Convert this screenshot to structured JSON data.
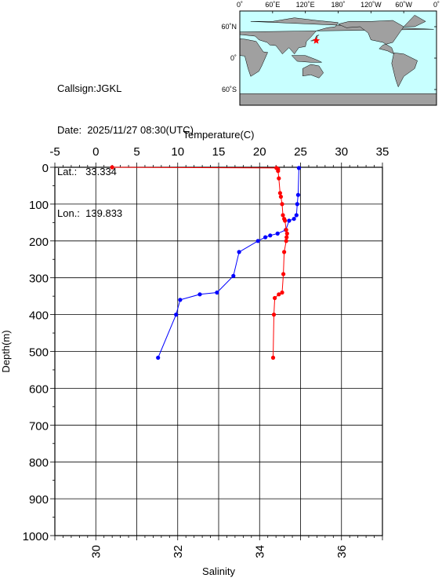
{
  "station": {
    "callsign_label": "Callsign:",
    "callsign": "JGKL",
    "date_label": "Date:",
    "date": "2025/11/27 08:30(UTC)",
    "lat_label": "Lat.:",
    "lat": "33.334",
    "lon_label": "Lon.:",
    "lon": "139.833"
  },
  "map": {
    "top_labels": [
      "0˚",
      "60˚E",
      "120˚E",
      "180˚",
      "120˚W",
      "60˚W",
      "0˚"
    ],
    "right_labels": [
      "60˚N",
      "0˚",
      "60˚S"
    ],
    "ocean_color": "#c8ffff",
    "land_color": "#a0a0a0",
    "marker_color": "#ff0000",
    "marker_lon": 139.833,
    "marker_lat": 33.334
  },
  "chart_data": {
    "type": "line",
    "top_axis": {
      "label": "Temperature(C)",
      "range": [
        -5,
        35
      ],
      "ticks": [
        "-5",
        "0",
        "5",
        "10",
        "15",
        "20",
        "25",
        "30",
        "35"
      ],
      "tick_values": [
        -5,
        0,
        5,
        10,
        15,
        20,
        25,
        30,
        35
      ]
    },
    "bottom_axis": {
      "label": "Salinity",
      "range": [
        29,
        37
      ],
      "ticks": [
        "30",
        "32",
        "34",
        "36"
      ],
      "tick_values": [
        30,
        32,
        34,
        36
      ]
    },
    "y_axis": {
      "label": "Depth(m)",
      "range": [
        0,
        1000
      ],
      "ticks": [
        "0",
        "100",
        "200",
        "300",
        "400",
        "500",
        "600",
        "700",
        "800",
        "900",
        "1000"
      ],
      "tick_values": [
        0,
        100,
        200,
        300,
        400,
        500,
        600,
        700,
        800,
        900,
        1000
      ]
    },
    "grid": true,
    "series": [
      {
        "axis": "temperature",
        "color": "#0000ff",
        "points": [
          [
            24.8,
            2
          ],
          [
            24.7,
            75
          ],
          [
            24.6,
            100
          ],
          [
            24.5,
            130
          ],
          [
            24.2,
            140
          ],
          [
            23.6,
            145
          ],
          [
            23.2,
            170
          ],
          [
            22.2,
            180
          ],
          [
            21.3,
            185
          ],
          [
            20.7,
            190
          ],
          [
            19.8,
            200
          ],
          [
            17.5,
            230
          ],
          [
            16.8,
            295
          ],
          [
            14.8,
            340
          ],
          [
            12.7,
            345
          ],
          [
            10.3,
            360
          ],
          [
            9.8,
            400
          ],
          [
            7.6,
            517
          ]
        ]
      },
      {
        "axis": "salinity",
        "color": "#ff0000",
        "points": [
          [
            30.4,
            0
          ],
          [
            34.41,
            2
          ],
          [
            34.45,
            5
          ],
          [
            34.45,
            10
          ],
          [
            34.47,
            30
          ],
          [
            34.5,
            70
          ],
          [
            34.52,
            80
          ],
          [
            34.55,
            100
          ],
          [
            34.57,
            130
          ],
          [
            34.6,
            140
          ],
          [
            34.62,
            145
          ],
          [
            34.65,
            170
          ],
          [
            34.67,
            180
          ],
          [
            34.66,
            190
          ],
          [
            34.65,
            200
          ],
          [
            34.6,
            230
          ],
          [
            34.58,
            290
          ],
          [
            34.55,
            340
          ],
          [
            34.47,
            345
          ],
          [
            34.37,
            355
          ],
          [
            34.35,
            400
          ],
          [
            34.33,
            517
          ]
        ]
      }
    ]
  }
}
